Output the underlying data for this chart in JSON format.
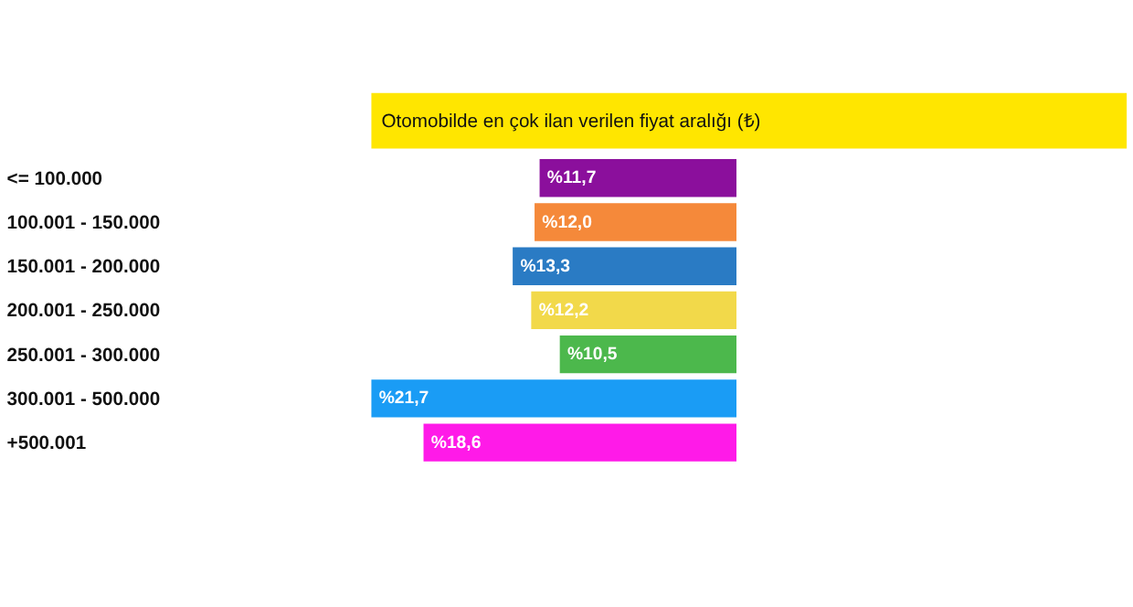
{
  "chart_data": {
    "type": "bar",
    "orientation": "horizontal",
    "title": "Otomobilde en çok ilan verilen fiyat aralığı (₺)",
    "categories": [
      "<= 100.000",
      "100.001 - 150.000",
      "150.001 - 200.000",
      "200.001 - 250.000",
      "250.001 - 300.000",
      "300.001 - 500.000",
      "+500.001"
    ],
    "values": [
      11.7,
      12.0,
      13.3,
      12.2,
      10.5,
      21.7,
      18.6
    ],
    "colors": [
      "#8b0f9c",
      "#f5893a",
      "#2a7bc4",
      "#f2d94a",
      "#4cb84c",
      "#1a9cf5",
      "#ff1ae8"
    ],
    "value_labels": [
      "%11,7",
      "%12,0",
      "%13,3",
      "%12,2",
      "%10,5",
      "%21,7",
      "%18,6"
    ]
  }
}
